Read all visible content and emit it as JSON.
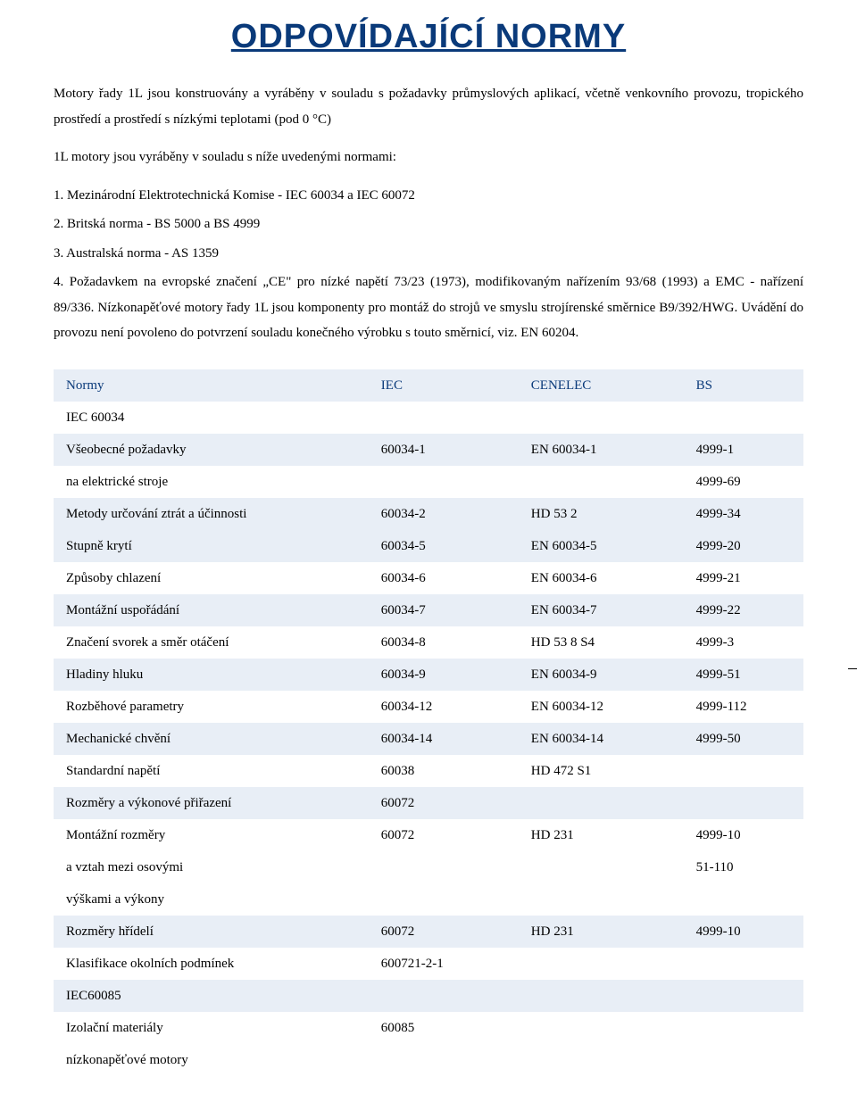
{
  "title": "ODPOVÍDAJÍCÍ NORMY",
  "title_color": "#0a3a7a",
  "intro_1": "Motory řady 1L jsou konstruovány a vyráběny v souladu s požadavky průmyslových aplikací, včetně venkovního provozu, tropického prostředí a prostředí s nízkými teplotami (pod 0 °C)",
  "intro_2": "1L motory jsou vyráběny v souladu s níže uvedenými normami:",
  "items": [
    "1. Mezinárodní Elektrotechnická Komise - IEC 60034 a IEC 60072",
    "2. Britská norma - BS 5000 a BS 4999",
    "3. Australská norma - AS 1359",
    "4. Požadavkem na evropské značení „CE\" pro nízké napětí 73/23 (1973), modifikovaným nařízením 93/68 (1993) a EMC - nařízení 89/336. Nízkonapěťové motory řady 1L jsou komponenty pro montáž do strojů ve smyslu strojírenské směrnice B9/392/HWG. Uvádění do provozu není povoleno do potvrzení souladu konečného výrobku s touto směrnicí, viz. EN 60204."
  ],
  "table": {
    "header_color": "#0a3a7a",
    "row_shade": "#e8eef6",
    "columns": [
      "Normy",
      "IEC",
      "CENELEC",
      "BS"
    ],
    "rows": [
      {
        "shaded": true,
        "cells": [
          "Normy",
          "IEC",
          "CENELEC",
          "BS"
        ],
        "is_header": true
      },
      {
        "shaded": false,
        "cells": [
          "IEC 60034",
          "",
          "",
          ""
        ]
      },
      {
        "shaded": true,
        "cells": [
          "Všeobecné požadavky",
          "60034-1",
          "EN 60034-1",
          "4999-1"
        ]
      },
      {
        "shaded": false,
        "cells": [
          "na elektrické stroje",
          "",
          "",
          "4999-69"
        ]
      },
      {
        "shaded": true,
        "cells": [
          "Metody určování ztrát a  účinnosti",
          "60034-2",
          "HD 53 2",
          "4999-34"
        ]
      },
      {
        "shaded": true,
        "cells": [
          "Stupně krytí",
          "60034-5",
          "EN 60034-5",
          "4999-20"
        ]
      },
      {
        "shaded": false,
        "cells": [
          "Způsoby chlazení",
          "60034-6",
          "EN 60034-6",
          "4999-21"
        ]
      },
      {
        "shaded": true,
        "cells": [
          "Montážní uspořádání",
          "60034-7",
          "EN 60034-7",
          "4999-22"
        ]
      },
      {
        "shaded": false,
        "cells": [
          "Značení svorek a směr otáčení",
          "60034-8",
          "HD 53 8 S4",
          "4999-3"
        ]
      },
      {
        "shaded": true,
        "cells": [
          "Hladiny hluku",
          "60034-9",
          "EN 60034-9",
          "4999-51"
        ]
      },
      {
        "shaded": false,
        "cells": [
          "Rozběhové parametry",
          "60034-12",
          "EN 60034-12",
          "4999-112"
        ]
      },
      {
        "shaded": true,
        "cells": [
          "Mechanické chvění",
          "60034-14",
          "EN 60034-14",
          "4999-50"
        ]
      },
      {
        "shaded": false,
        "cells": [
          "Standardní napětí",
          "60038",
          "HD 472 S1",
          ""
        ]
      },
      {
        "shaded": true,
        "cells": [
          "Rozměry a výkonové přiřazení",
          "60072",
          "",
          ""
        ]
      },
      {
        "shaded": false,
        "cells": [
          "Montážní rozměry",
          "60072",
          "HD 231",
          "4999-10"
        ]
      },
      {
        "shaded": false,
        "cells": [
          "a vztah mezi osovými",
          "",
          "",
          "51-110"
        ]
      },
      {
        "shaded": false,
        "cells": [
          "výškami a výkony",
          "",
          "",
          ""
        ]
      },
      {
        "shaded": true,
        "cells": [
          "Rozměry hřídelí",
          "60072",
          "HD 231",
          "4999-10"
        ]
      },
      {
        "shaded": false,
        "cells": [
          "Klasifikace okolních  podmínek",
          "600721-2-1",
          "",
          ""
        ]
      },
      {
        "shaded": true,
        "cells": [
          "IEC60085",
          "",
          "",
          ""
        ]
      },
      {
        "shaded": false,
        "cells": [
          "Izolační materiály",
          "60085",
          "",
          ""
        ]
      },
      {
        "shaded": false,
        "cells": [
          "nízkonapěťové motory",
          "",
          "",
          ""
        ]
      }
    ]
  }
}
